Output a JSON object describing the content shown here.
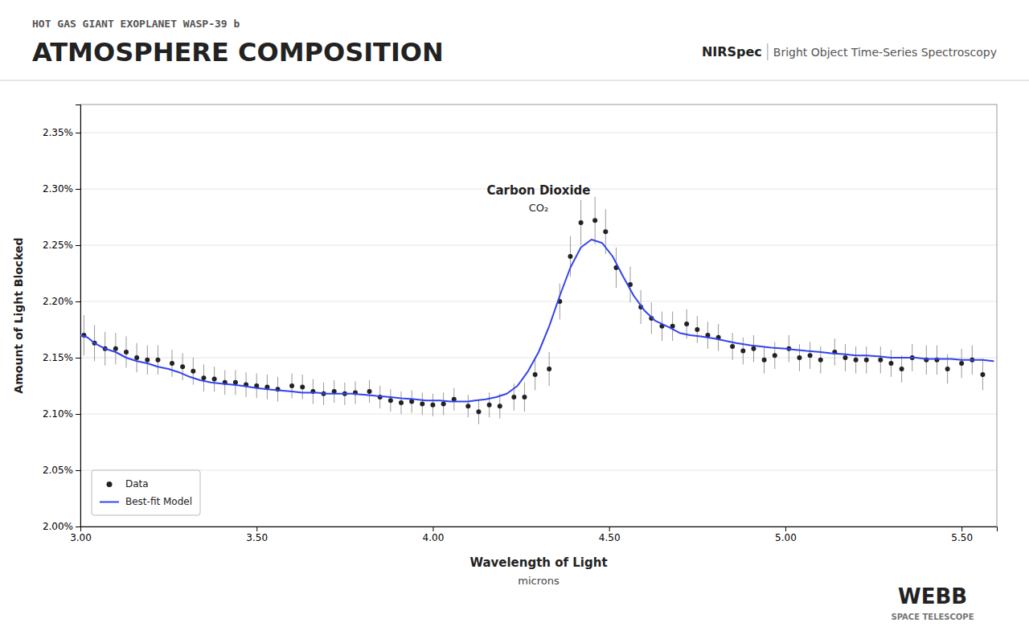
{
  "chart_data": {
    "type": "scatter",
    "title": "ATMOSPHERE COMPOSITION",
    "subtitle": "HOT GAS GIANT EXOPLANET WASP-39 b",
    "header_right": [
      "NIRSpec",
      "Bright Object Time-Series Spectroscopy"
    ],
    "logo": [
      "WEBB",
      "SPACE TELESCOPE"
    ],
    "y_label": "Amount of Light Blocked",
    "x_label": "Wavelength of Light",
    "x_label_sub": "microns",
    "annotations": [
      {
        "text": "Carbon Dioxide",
        "x": 4.3,
        "y": 2.295
      },
      {
        "text": "CO₂",
        "x": 4.3,
        "y": 2.287
      }
    ],
    "xlim": [
      3.0,
      5.6
    ],
    "ylim": [
      2.0,
      2.375
    ],
    "xticks": [
      {
        "value": 3.0,
        "label": "3.00"
      },
      {
        "value": 3.5,
        "label": "3.50"
      },
      {
        "value": 4.0,
        "label": "4.00"
      },
      {
        "value": 4.5,
        "label": "4.50"
      },
      {
        "value": 5.0,
        "label": "5.00"
      },
      {
        "value": 5.5,
        "label": "5.50"
      }
    ],
    "yticks": [
      {
        "value": 2.0,
        "label": "2.00%"
      },
      {
        "value": 2.05,
        "label": "2.05%"
      },
      {
        "value": 2.1,
        "label": "2.10%"
      },
      {
        "value": 2.15,
        "label": "2.15%"
      },
      {
        "value": 2.2,
        "label": "2.20%"
      },
      {
        "value": 2.25,
        "label": "2.25%"
      },
      {
        "value": 2.3,
        "label": "2.30%"
      },
      {
        "value": 2.35,
        "label": "2.35%"
      }
    ],
    "grid": "y",
    "legend": "lower left",
    "series": [
      {
        "name": "Data",
        "type": "scatter",
        "marker": "circle",
        "x": [
          3.01,
          3.04,
          3.07,
          3.1,
          3.13,
          3.16,
          3.19,
          3.22,
          3.26,
          3.29,
          3.32,
          3.35,
          3.38,
          3.41,
          3.44,
          3.47,
          3.5,
          3.53,
          3.56,
          3.6,
          3.63,
          3.66,
          3.69,
          3.72,
          3.75,
          3.78,
          3.82,
          3.85,
          3.88,
          3.91,
          3.94,
          3.97,
          4.0,
          4.03,
          4.06,
          4.1,
          4.13,
          4.16,
          4.19,
          4.23,
          4.26,
          4.29,
          4.33,
          4.36,
          4.39,
          4.42,
          4.46,
          4.49,
          4.52,
          4.56,
          4.59,
          4.62,
          4.65,
          4.68,
          4.72,
          4.75,
          4.78,
          4.81,
          4.85,
          4.88,
          4.91,
          4.94,
          4.97,
          5.01,
          5.04,
          5.07,
          5.1,
          5.14,
          5.17,
          5.2,
          5.23,
          5.27,
          5.3,
          5.33,
          5.36,
          5.4,
          5.43,
          5.46,
          5.5,
          5.53,
          5.56
        ],
        "values": [
          2.17,
          2.163,
          2.158,
          2.158,
          2.155,
          2.15,
          2.148,
          2.148,
          2.145,
          2.142,
          2.138,
          2.132,
          2.131,
          2.128,
          2.128,
          2.126,
          2.125,
          2.124,
          2.122,
          2.125,
          2.124,
          2.12,
          2.118,
          2.12,
          2.118,
          2.119,
          2.12,
          2.115,
          2.112,
          2.11,
          2.111,
          2.109,
          2.108,
          2.109,
          2.113,
          2.107,
          2.102,
          2.108,
          2.107,
          2.115,
          2.115,
          2.135,
          2.14,
          2.2,
          2.24,
          2.27,
          2.272,
          2.262,
          2.23,
          2.215,
          2.195,
          2.185,
          2.178,
          2.178,
          2.18,
          2.175,
          2.17,
          2.168,
          2.16,
          2.156,
          2.158,
          2.148,
          2.152,
          2.158,
          2.15,
          2.152,
          2.148,
          2.155,
          2.15,
          2.148,
          2.148,
          2.148,
          2.145,
          2.14,
          2.15,
          2.148,
          2.148,
          2.14,
          2.145,
          2.148,
          2.135
        ],
        "errors": [
          0.018,
          0.016,
          0.015,
          0.014,
          0.014,
          0.013,
          0.013,
          0.013,
          0.012,
          0.012,
          0.012,
          0.012,
          0.011,
          0.011,
          0.011,
          0.011,
          0.011,
          0.011,
          0.011,
          0.011,
          0.011,
          0.011,
          0.01,
          0.01,
          0.01,
          0.01,
          0.01,
          0.01,
          0.01,
          0.01,
          0.01,
          0.01,
          0.01,
          0.01,
          0.01,
          0.01,
          0.011,
          0.011,
          0.011,
          0.012,
          0.013,
          0.014,
          0.015,
          0.016,
          0.018,
          0.02,
          0.021,
          0.02,
          0.018,
          0.016,
          0.015,
          0.014,
          0.013,
          0.013,
          0.013,
          0.012,
          0.012,
          0.012,
          0.012,
          0.012,
          0.012,
          0.012,
          0.012,
          0.012,
          0.012,
          0.012,
          0.012,
          0.012,
          0.012,
          0.012,
          0.012,
          0.012,
          0.012,
          0.012,
          0.012,
          0.013,
          0.013,
          0.013,
          0.013,
          0.013,
          0.014
        ]
      },
      {
        "name": "Best-fit Model",
        "type": "line",
        "color": "#3344ee",
        "line_style": "solid",
        "x": [
          3.0,
          3.02,
          3.04,
          3.07,
          3.1,
          3.13,
          3.16,
          3.19,
          3.22,
          3.25,
          3.28,
          3.31,
          3.34,
          3.37,
          3.4,
          3.43,
          3.46,
          3.5,
          3.53,
          3.56,
          3.6,
          3.63,
          3.67,
          3.7,
          3.74,
          3.77,
          3.81,
          3.84,
          3.88,
          3.91,
          3.95,
          3.98,
          4.02,
          4.05,
          4.08,
          4.1,
          4.12,
          4.15,
          4.18,
          4.21,
          4.24,
          4.27,
          4.3,
          4.33,
          4.36,
          4.39,
          4.42,
          4.45,
          4.48,
          4.51,
          4.54,
          4.57,
          4.6,
          4.63,
          4.67,
          4.7,
          4.73,
          4.76,
          4.8,
          4.83,
          4.86,
          4.9,
          4.93,
          4.96,
          5.0,
          5.03,
          5.06,
          5.1,
          5.13,
          5.17,
          5.2,
          5.23,
          5.27,
          5.3,
          5.33,
          5.37,
          5.4,
          5.44,
          5.47,
          5.5,
          5.53,
          5.56,
          5.59
        ],
        "values": [
          2.17,
          2.168,
          2.163,
          2.158,
          2.155,
          2.15,
          2.147,
          2.145,
          2.142,
          2.14,
          2.137,
          2.133,
          2.13,
          2.128,
          2.127,
          2.126,
          2.125,
          2.123,
          2.122,
          2.121,
          2.12,
          2.119,
          2.119,
          2.118,
          2.118,
          2.118,
          2.117,
          2.116,
          2.115,
          2.114,
          2.113,
          2.112,
          2.112,
          2.111,
          2.111,
          2.111,
          2.112,
          2.113,
          2.115,
          2.118,
          2.125,
          2.138,
          2.155,
          2.178,
          2.205,
          2.23,
          2.248,
          2.255,
          2.252,
          2.24,
          2.222,
          2.205,
          2.192,
          2.183,
          2.177,
          2.172,
          2.17,
          2.169,
          2.167,
          2.165,
          2.163,
          2.161,
          2.16,
          2.159,
          2.158,
          2.157,
          2.156,
          2.155,
          2.154,
          2.153,
          2.152,
          2.152,
          2.151,
          2.15,
          2.15,
          2.15,
          2.149,
          2.149,
          2.149,
          2.148,
          2.148,
          2.148,
          2.147
        ]
      }
    ]
  }
}
